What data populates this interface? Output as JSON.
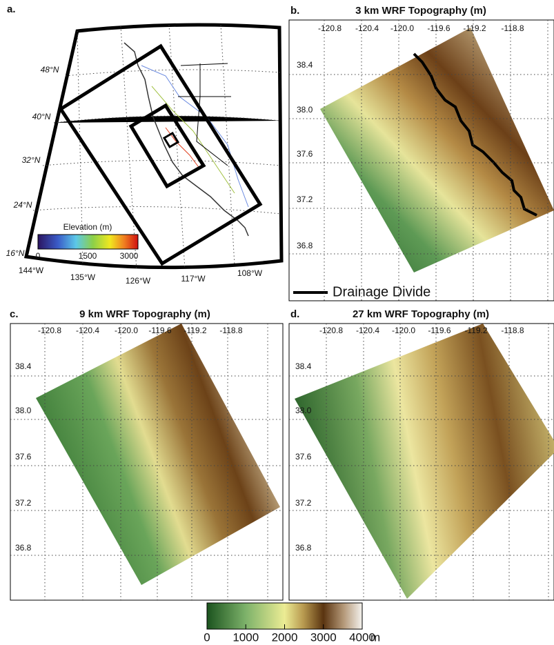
{
  "panel_a": {
    "label": "a.",
    "lat_labels": [
      "48°N",
      "40°N",
      "32°N",
      "24°N",
      "16°N"
    ],
    "lon_labels": [
      "144°W",
      "135°W",
      "126°W",
      "117°W",
      "108°W"
    ],
    "colorbar": {
      "title": "Elevation (m)",
      "ticks": [
        "0",
        "1500",
        "3000"
      ]
    }
  },
  "panel_b": {
    "label": "b.",
    "title": "3 km WRF Topography (m)",
    "lon_labels": [
      "-120.8",
      "-120.4",
      "-120.0",
      "-119.6",
      "-119.2",
      "-118.8"
    ],
    "lat_labels": [
      "38.4",
      "38.0",
      "37.6",
      "37.2",
      "36.8"
    ],
    "legend": "Drainage Divide"
  },
  "panel_c": {
    "label": "c.",
    "title": "9 km WRF Topography (m)",
    "lon_labels": [
      "-120.8",
      "-120.4",
      "-120.0",
      "-119.6",
      "-119.2",
      "-118.8"
    ],
    "lat_labels": [
      "38.4",
      "38.0",
      "37.6",
      "37.2",
      "36.8"
    ]
  },
  "panel_d": {
    "label": "d.",
    "title": "27 km WRF Topography (m)",
    "lon_labels": [
      "-120.8",
      "-120.4",
      "-120.0",
      "-119.6",
      "-119.2",
      "-118.8"
    ],
    "lat_labels": [
      "38.4",
      "38.0",
      "37.6",
      "37.2",
      "36.8"
    ]
  },
  "colorbar": {
    "ticks": [
      "0",
      "1000",
      "2000",
      "3000",
      "4000"
    ],
    "unit": "m"
  }
}
